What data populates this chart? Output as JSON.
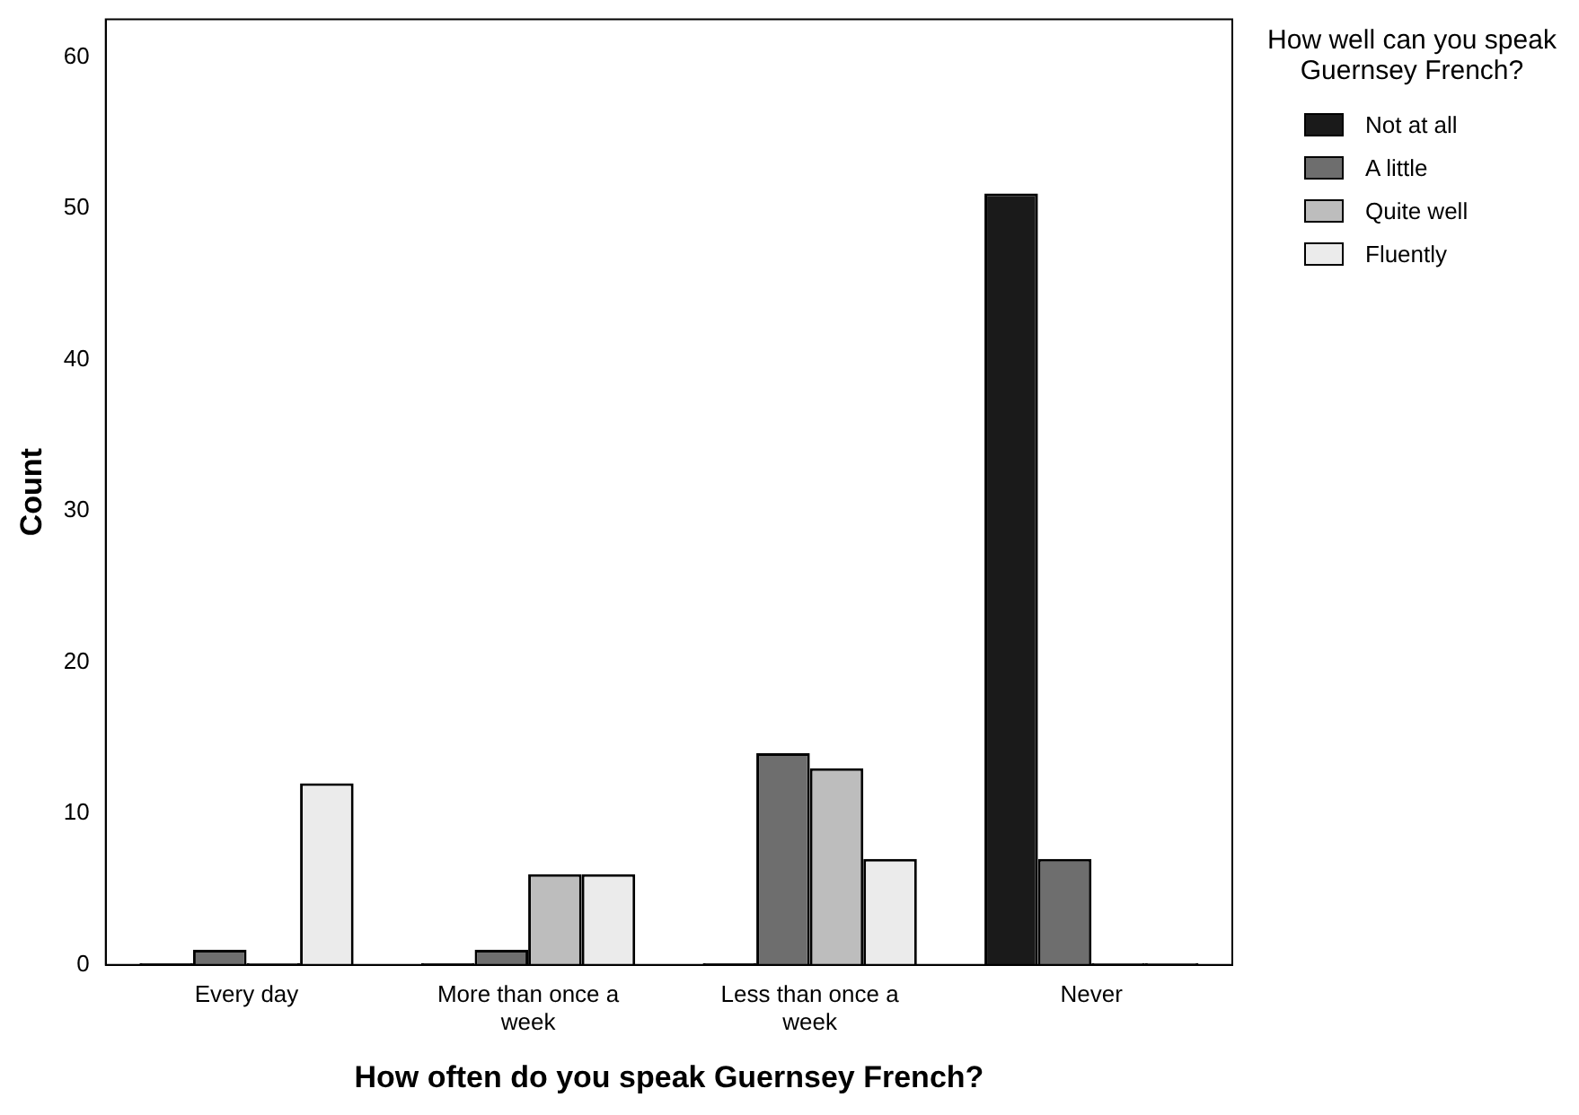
{
  "chart_data": {
    "type": "bar",
    "xlabel": "How often do you speak Guernsey French?",
    "ylabel": "Count",
    "legend_title": "How well can you speak Guernsey French?",
    "legend": "right",
    "grid": false,
    "categories": [
      "Every day",
      "More than once a week",
      "Less than once a week",
      "Never"
    ],
    "ylim": [
      0,
      62.5
    ],
    "yticks": [
      0,
      10,
      20,
      30,
      40,
      50,
      60
    ],
    "series": [
      {
        "name": "Not at all",
        "color": "#1a1a1a",
        "values": [
          0,
          0,
          0,
          51
        ]
      },
      {
        "name": "A little",
        "color": "#6e6e6e",
        "values": [
          1,
          1,
          14,
          7
        ]
      },
      {
        "name": "Quite well",
        "color": "#bdbdbd",
        "values": [
          0,
          6,
          13,
          0
        ]
      },
      {
        "name": "Fluently",
        "color": "#ebebeb",
        "values": [
          12,
          6,
          7,
          0
        ]
      }
    ]
  }
}
